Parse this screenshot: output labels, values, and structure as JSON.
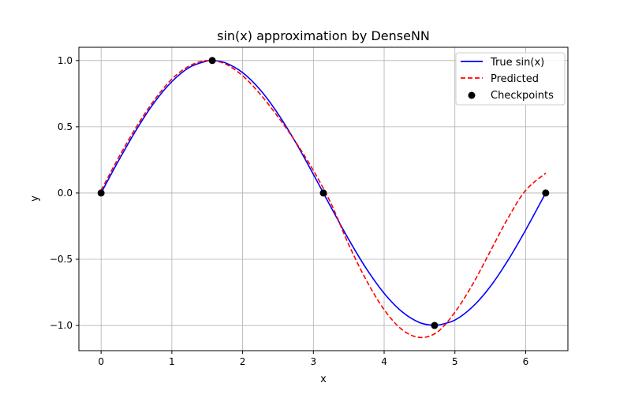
{
  "chart_data": {
    "type": "line",
    "title": "sin(x) approximation by DenseNN",
    "xlabel": "x",
    "ylabel": "y",
    "xlim": [
      -0.314,
      6.597
    ],
    "ylim": [
      -1.19,
      1.1
    ],
    "xticks": [
      0,
      1,
      2,
      3,
      4,
      5,
      6
    ],
    "xtick_labels": [
      "0",
      "1",
      "2",
      "3",
      "4",
      "5",
      "6"
    ],
    "yticks": [
      -1.0,
      -0.5,
      0.0,
      0.5,
      1.0
    ],
    "ytick_labels": [
      "−1.0",
      "−0.5",
      "0.0",
      "0.5",
      "1.0"
    ],
    "grid": true,
    "legend": "top-right",
    "series": [
      {
        "name": "True sin(x)",
        "style": "solid",
        "color": "#0000ff",
        "x": [
          0,
          0.25,
          0.5,
          0.75,
          1.0,
          1.25,
          1.5,
          1.5708,
          1.75,
          2.0,
          2.25,
          2.5,
          2.75,
          3.0,
          3.1416,
          3.25,
          3.5,
          3.75,
          4.0,
          4.25,
          4.5,
          4.7124,
          4.75,
          5.0,
          5.25,
          5.5,
          5.75,
          6.0,
          6.2832
        ],
        "y": [
          0.0,
          0.247,
          0.479,
          0.682,
          0.841,
          0.949,
          0.997,
          1.0,
          0.984,
          0.909,
          0.778,
          0.598,
          0.382,
          0.141,
          0.0,
          -0.108,
          -0.351,
          -0.572,
          -0.757,
          -0.895,
          -0.978,
          -1.0,
          -0.999,
          -0.959,
          -0.859,
          -0.706,
          -0.508,
          -0.279,
          0.0
        ]
      },
      {
        "name": "Predicted",
        "style": "dashed",
        "color": "#ff0000",
        "x": [
          0,
          0.25,
          0.5,
          0.75,
          1.0,
          1.25,
          1.5,
          1.75,
          2.0,
          2.25,
          2.5,
          2.75,
          3.0,
          3.25,
          3.5,
          3.75,
          4.0,
          4.25,
          4.5,
          4.75,
          5.0,
          5.25,
          5.5,
          5.75,
          6.0,
          6.2832
        ],
        "y": [
          0.02,
          0.27,
          0.5,
          0.7,
          0.86,
          0.96,
          1.0,
          0.975,
          0.885,
          0.745,
          0.575,
          0.385,
          0.17,
          -0.08,
          -0.39,
          -0.66,
          -0.88,
          -1.03,
          -1.09,
          -1.05,
          -0.9,
          -0.69,
          -0.44,
          -0.19,
          0.02,
          0.15
        ]
      }
    ],
    "scatter": {
      "name": "Checkpoints",
      "color": "#000000",
      "x": [
        0,
        1.5708,
        3.1416,
        4.7124,
        6.2832
      ],
      "y": [
        0,
        1,
        0,
        -1,
        0
      ]
    }
  }
}
